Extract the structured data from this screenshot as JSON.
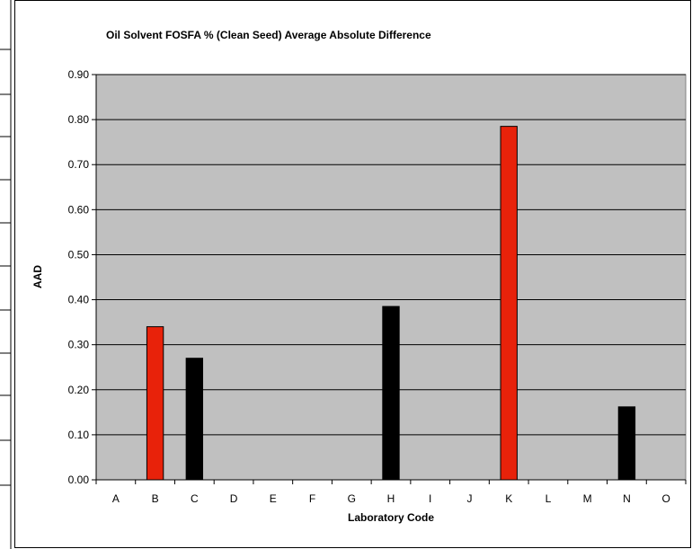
{
  "chart_data": {
    "type": "bar",
    "title": "Oil Solvent FOSFA % (Clean Seed) Average Absolute Difference",
    "xlabel": "Laboratory Code",
    "ylabel": "AAD",
    "ylim": [
      0,
      0.9
    ],
    "y_ticks": [
      "0.00",
      "0.10",
      "0.20",
      "0.30",
      "0.40",
      "0.50",
      "0.60",
      "0.70",
      "0.80",
      "0.90"
    ],
    "categories": [
      "A",
      "B",
      "C",
      "D",
      "E",
      "F",
      "G",
      "H",
      "I",
      "J",
      "K",
      "L",
      "M",
      "N",
      "O"
    ],
    "values": [
      null,
      0.34,
      0.27,
      null,
      null,
      null,
      null,
      0.385,
      null,
      null,
      0.785,
      null,
      null,
      0.162,
      null
    ],
    "bar_colors": [
      "#000000",
      "#e8220a",
      "#000000",
      "#000000",
      "#000000",
      "#000000",
      "#000000",
      "#000000",
      "#000000",
      "#000000",
      "#e8220a",
      "#000000",
      "#000000",
      "#000000",
      "#000000"
    ],
    "grid": true,
    "plot_background": "#c0c0c0",
    "legend": "none"
  }
}
